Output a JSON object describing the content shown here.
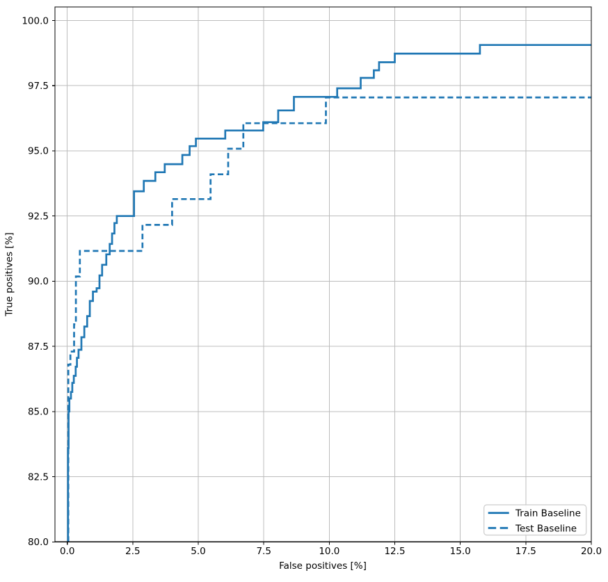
{
  "chart_data": {
    "type": "line",
    "subtype": "step-roc-curve",
    "title": "",
    "xlabel": "False positives [%]",
    "ylabel": "True positives [%]",
    "xlim": [
      -0.47,
      20
    ],
    "ylim": [
      80,
      100.52
    ],
    "grid": true,
    "legend_position": "lower right",
    "line_color": "#1f77b4",
    "grid_color": "#bcbcbc",
    "spine_color": "#000000",
    "x_ticks": [
      0.0,
      2.5,
      5.0,
      7.5,
      10.0,
      12.5,
      15.0,
      17.5,
      20.0
    ],
    "x_tick_labels": [
      "0.0",
      "2.5",
      "5.0",
      "7.5",
      "10.0",
      "12.5",
      "15.0",
      "17.5",
      "20.0"
    ],
    "y_ticks": [
      80.0,
      82.5,
      85.0,
      87.5,
      90.0,
      92.5,
      95.0,
      97.5,
      100.0
    ],
    "y_tick_labels": [
      "80.0",
      "82.5",
      "85.0",
      "87.5",
      "90.0",
      "92.5",
      "95.0",
      "97.5",
      "100.0"
    ],
    "series": [
      {
        "name": "Train Baseline",
        "style": "solid",
        "points": [
          [
            0.03,
            80.0
          ],
          [
            0.03,
            83.6
          ],
          [
            0.05,
            83.6
          ],
          [
            0.05,
            85.0
          ],
          [
            0.08,
            85.0
          ],
          [
            0.08,
            85.5
          ],
          [
            0.14,
            85.5
          ],
          [
            0.14,
            85.75
          ],
          [
            0.19,
            85.75
          ],
          [
            0.19,
            86.1
          ],
          [
            0.25,
            86.1
          ],
          [
            0.25,
            86.37
          ],
          [
            0.32,
            86.37
          ],
          [
            0.32,
            86.72
          ],
          [
            0.37,
            86.72
          ],
          [
            0.37,
            87.06
          ],
          [
            0.43,
            87.06
          ],
          [
            0.43,
            87.37
          ],
          [
            0.54,
            87.37
          ],
          [
            0.54,
            87.85
          ],
          [
            0.65,
            87.85
          ],
          [
            0.65,
            88.26
          ],
          [
            0.76,
            88.26
          ],
          [
            0.76,
            88.66
          ],
          [
            0.86,
            88.66
          ],
          [
            0.86,
            89.24
          ],
          [
            0.98,
            89.24
          ],
          [
            0.98,
            89.6
          ],
          [
            1.12,
            89.6
          ],
          [
            1.12,
            89.73
          ],
          [
            1.23,
            89.73
          ],
          [
            1.23,
            90.22
          ],
          [
            1.33,
            90.22
          ],
          [
            1.33,
            90.63
          ],
          [
            1.49,
            90.63
          ],
          [
            1.49,
            91.03
          ],
          [
            1.62,
            91.03
          ],
          [
            1.62,
            91.43
          ],
          [
            1.71,
            91.43
          ],
          [
            1.71,
            91.83
          ],
          [
            1.8,
            91.83
          ],
          [
            1.8,
            92.23
          ],
          [
            1.89,
            92.23
          ],
          [
            1.89,
            92.5
          ],
          [
            2.55,
            92.5
          ],
          [
            2.55,
            93.45
          ],
          [
            2.92,
            93.45
          ],
          [
            2.92,
            93.85
          ],
          [
            3.36,
            93.85
          ],
          [
            3.36,
            94.18
          ],
          [
            3.72,
            94.18
          ],
          [
            3.72,
            94.49
          ],
          [
            4.39,
            94.49
          ],
          [
            4.39,
            94.84
          ],
          [
            4.67,
            94.84
          ],
          [
            4.67,
            95.18
          ],
          [
            4.91,
            95.18
          ],
          [
            4.91,
            95.47
          ],
          [
            6.03,
            95.47
          ],
          [
            6.03,
            95.78
          ],
          [
            7.48,
            95.78
          ],
          [
            7.48,
            96.1
          ],
          [
            8.05,
            96.1
          ],
          [
            8.05,
            96.55
          ],
          [
            8.65,
            96.55
          ],
          [
            8.65,
            97.07
          ],
          [
            10.3,
            97.07
          ],
          [
            10.3,
            97.4
          ],
          [
            11.2,
            97.4
          ],
          [
            11.2,
            97.8
          ],
          [
            11.7,
            97.8
          ],
          [
            11.7,
            98.09
          ],
          [
            11.9,
            98.09
          ],
          [
            11.9,
            98.4
          ],
          [
            12.5,
            98.4
          ],
          [
            12.5,
            98.73
          ],
          [
            15.75,
            98.73
          ],
          [
            15.75,
            99.06
          ],
          [
            20.0,
            99.06
          ]
        ]
      },
      {
        "name": "Test Baseline",
        "style": "dashed",
        "points": [
          [
            0.04,
            80.0
          ],
          [
            0.04,
            86.8
          ],
          [
            0.12,
            86.8
          ],
          [
            0.12,
            87.3
          ],
          [
            0.26,
            87.3
          ],
          [
            0.26,
            88.35
          ],
          [
            0.33,
            88.35
          ],
          [
            0.33,
            90.18
          ],
          [
            0.48,
            90.18
          ],
          [
            0.48,
            91.16
          ],
          [
            2.87,
            91.16
          ],
          [
            2.87,
            92.16
          ],
          [
            4.0,
            92.16
          ],
          [
            4.0,
            93.15
          ],
          [
            5.47,
            93.15
          ],
          [
            5.47,
            94.1
          ],
          [
            6.14,
            94.1
          ],
          [
            6.14,
            95.08
          ],
          [
            6.72,
            95.08
          ],
          [
            6.72,
            96.06
          ],
          [
            9.87,
            96.06
          ],
          [
            9.87,
            97.05
          ],
          [
            20.0,
            97.05
          ]
        ]
      }
    ]
  },
  "legend": {
    "items": [
      {
        "label": "Train Baseline",
        "style": "solid"
      },
      {
        "label": "Test Baseline",
        "style": "dashed"
      }
    ]
  }
}
